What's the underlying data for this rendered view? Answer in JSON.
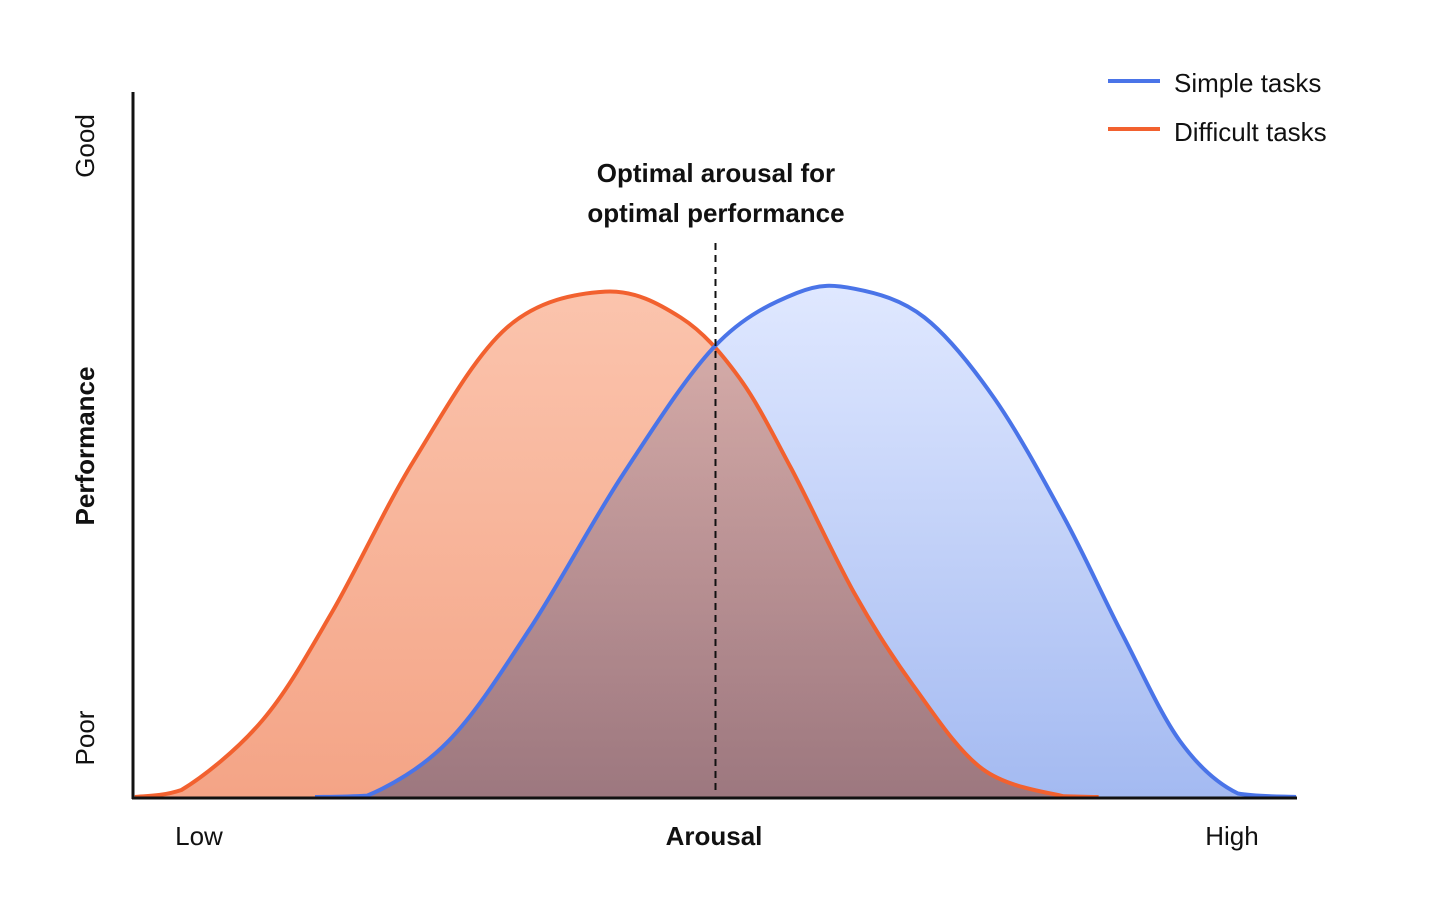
{
  "chart_data": {
    "type": "area",
    "xlabel": "Arousal",
    "ylabel": "Performance",
    "x_tick_labels": {
      "low": "Low",
      "high": "High"
    },
    "y_tick_labels": {
      "low": "Poor",
      "high": "Good"
    },
    "annotation": {
      "line1": "Optimal arousal for",
      "line2": "optimal performance",
      "x": 0.5
    },
    "xlim": [
      0,
      1
    ],
    "ylim": [
      0,
      1
    ],
    "grid": false,
    "legend_position": "top-right",
    "series": [
      {
        "name": "Simple tasks",
        "color": "#4a74e8",
        "fill_top": "#dde6ff",
        "fill_bottom": "#9cb4f0",
        "points": [
          [
            0.155,
            0.0
          ],
          [
            0.2,
            0.002
          ],
          [
            0.27,
            0.08
          ],
          [
            0.34,
            0.24
          ],
          [
            0.42,
            0.46
          ],
          [
            0.5,
            0.645
          ],
          [
            0.57,
            0.72
          ],
          [
            0.62,
            0.726
          ],
          [
            0.68,
            0.685
          ],
          [
            0.74,
            0.57
          ],
          [
            0.8,
            0.4
          ],
          [
            0.85,
            0.234
          ],
          [
            0.9,
            0.08
          ],
          [
            0.95,
            0.005
          ],
          [
            1.0,
            0.0
          ]
        ]
      },
      {
        "name": "Difficult tasks",
        "color": "#f2612f",
        "fill_top": "#fbc4ad",
        "fill_bottom": "#f4a486",
        "points": [
          [
            0.0,
            0.0
          ],
          [
            0.04,
            0.01
          ],
          [
            0.11,
            0.11
          ],
          [
            0.17,
            0.265
          ],
          [
            0.24,
            0.48
          ],
          [
            0.32,
            0.67
          ],
          [
            0.405,
            0.722
          ],
          [
            0.47,
            0.685
          ],
          [
            0.52,
            0.6
          ],
          [
            0.565,
            0.47
          ],
          [
            0.62,
            0.29
          ],
          [
            0.67,
            0.16
          ],
          [
            0.73,
            0.04
          ],
          [
            0.8,
            0.001
          ],
          [
            0.83,
            0.0
          ]
        ]
      }
    ]
  }
}
